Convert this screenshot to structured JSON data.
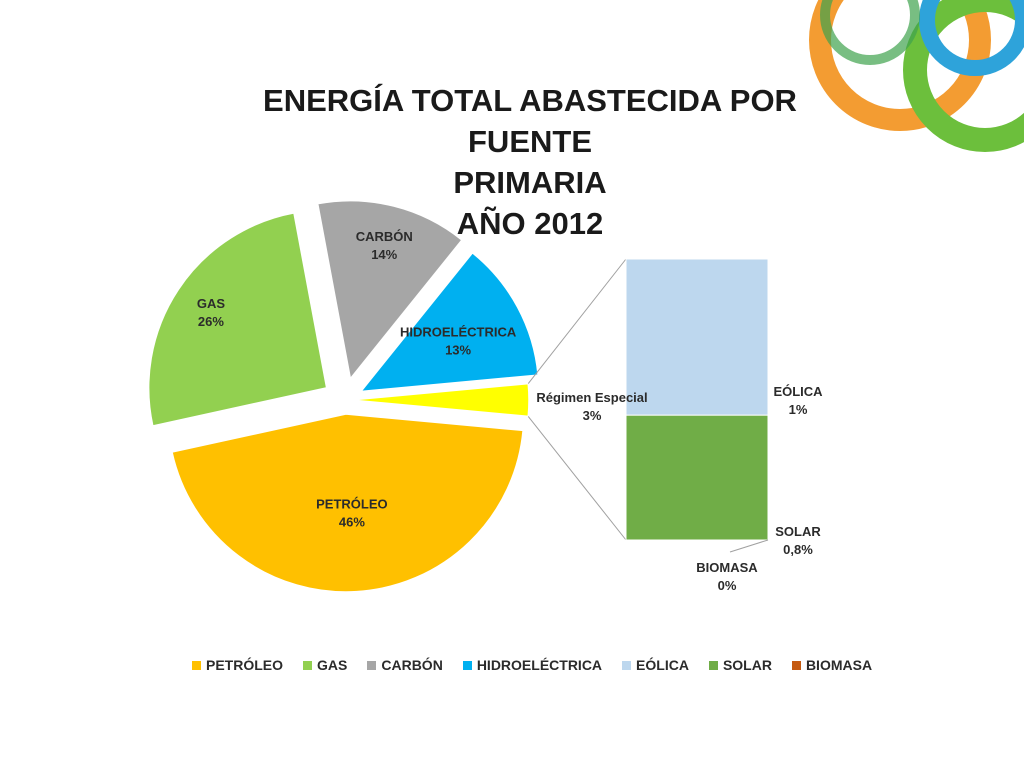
{
  "title": {
    "line1": "ENERGÍA TOTAL ABASTECIDA POR FUENTE",
    "line2": "PRIMARIA",
    "line3": "AÑO 2012"
  },
  "chart_data": {
    "type": "pie",
    "subtype": "bar-of-pie",
    "title": "ENERGÍA TOTAL ABASTECIDA POR FUENTE PRIMARIA AÑO 2012",
    "slices": [
      {
        "name": "PETRÓLEO",
        "label": "46%",
        "value": 46,
        "color": "#FFC000"
      },
      {
        "name": "GAS",
        "label": "26%",
        "value": 26,
        "color": "#92D050"
      },
      {
        "name": "CARBÓN",
        "label": "14%",
        "value": 14,
        "color": "#A6A6A6"
      },
      {
        "name": "HIDROELÉCTRICA",
        "label": "13%",
        "value": 13,
        "color": "#00B0F0"
      },
      {
        "name": "Régimen Especial",
        "label": "3%",
        "value": 3,
        "color": "#FFFF00"
      }
    ],
    "secondary_bar": [
      {
        "name": "EÓLICA",
        "label": "1%",
        "value": 1,
        "color": "#BDD7EE"
      },
      {
        "name": "SOLAR",
        "label": "0,8%",
        "value": 0.8,
        "color": "#70AD47"
      },
      {
        "name": "BIOMASA",
        "label": "0%",
        "value": 0,
        "color": "#C55A11"
      }
    ],
    "legend": {
      "position": "bottom",
      "entries": [
        {
          "name": "PETRÓLEO",
          "color": "#FFC000"
        },
        {
          "name": "GAS",
          "color": "#92D050"
        },
        {
          "name": "CARBÓN",
          "color": "#A6A6A6"
        },
        {
          "name": "HIDROELÉCTRICA",
          "color": "#00B0F0"
        },
        {
          "name": "EÓLICA",
          "color": "#BDD7EE"
        },
        {
          "name": "SOLAR",
          "color": "#70AD47"
        },
        {
          "name": "BIOMASA",
          "color": "#C55A11"
        }
      ]
    }
  }
}
